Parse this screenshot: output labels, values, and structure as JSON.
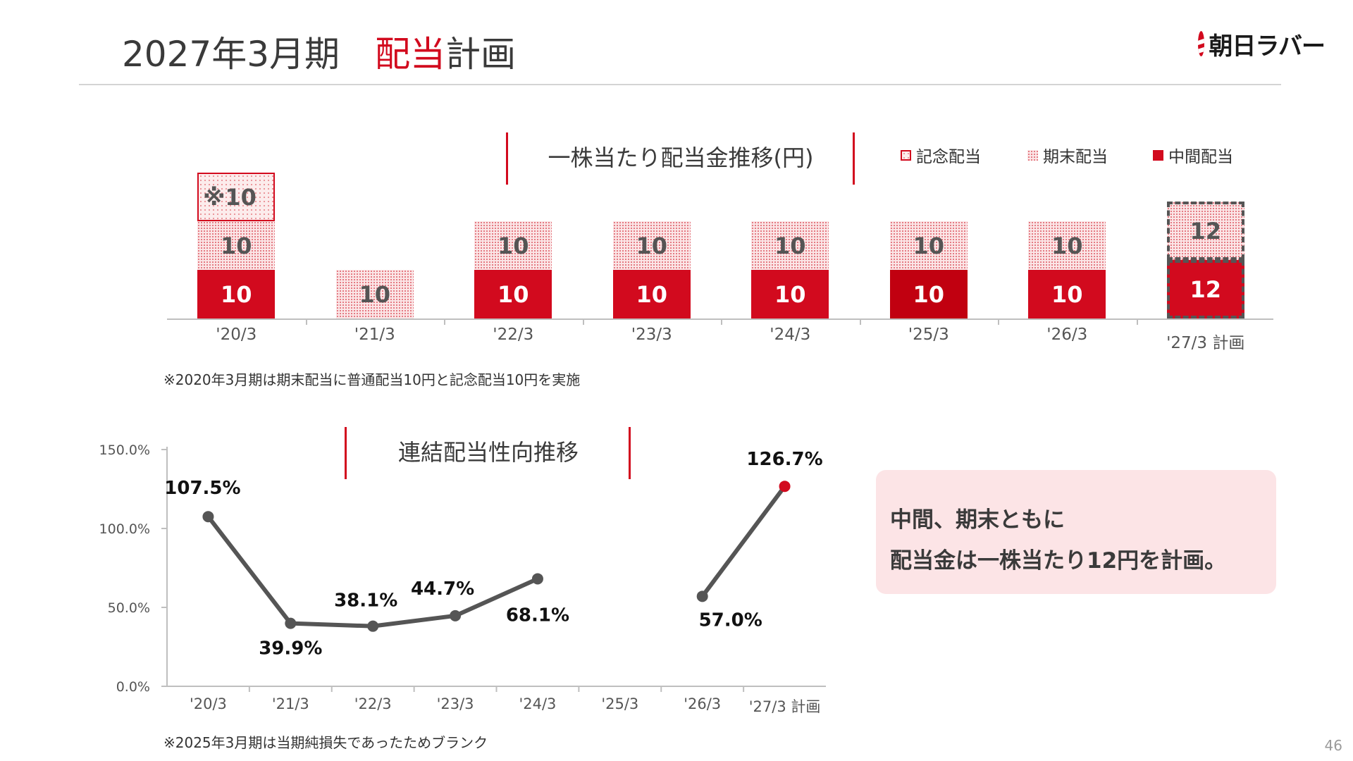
{
  "header": {
    "title_main": "2027年3月期",
    "title_accent": "配当",
    "title_rest": "計画",
    "logo_text": "朝日ラバー"
  },
  "dividend_panel": {
    "title": "一株当たり配当金推移(円)",
    "legend": [
      {
        "label": "記念配当",
        "key": "memorial"
      },
      {
        "label": "期末配当",
        "key": "yearend"
      },
      {
        "label": "中間配当",
        "key": "interim"
      }
    ],
    "note": "※2020年3月期は期末配当に普通配当10円と記念配当10円を実施"
  },
  "payout_panel": {
    "title": "連結配当性向推移",
    "note": "※2025年3月期は当期純損失であったためブランク"
  },
  "callout": {
    "line1": "中間、期末ともに",
    "line2": "配当金は一株当たり12円を計画。"
  },
  "page_number": "46",
  "colors": {
    "accent_red": "#d20a1e",
    "line_gray": "#555555",
    "callout_bg": "#fce4e6"
  },
  "chart_data": [
    {
      "type": "bar",
      "stacked": true,
      "title": "一株当たり配当金推移(円)",
      "categories": [
        "'20/3",
        "'21/3",
        "'22/3",
        "'23/3",
        "'24/3",
        "'25/3",
        "'26/3",
        "'27/3 計画"
      ],
      "series": [
        {
          "name": "中間配当",
          "values": [
            10,
            0,
            10,
            10,
            10,
            10,
            10,
            12
          ],
          "labels": [
            "10",
            "",
            "10",
            "10",
            "10",
            "10",
            "10",
            "12"
          ]
        },
        {
          "name": "期末配当",
          "values": [
            10,
            10,
            10,
            10,
            10,
            10,
            10,
            12
          ],
          "labels": [
            "10",
            "10",
            "10",
            "10",
            "10",
            "10",
            "10",
            "12"
          ]
        },
        {
          "name": "記念配当",
          "values": [
            10,
            0,
            0,
            0,
            0,
            0,
            0,
            0
          ],
          "labels": [
            "※10",
            "",
            "",
            "",
            "",
            "",
            "",
            ""
          ]
        }
      ],
      "plan_index": 7,
      "legend_position": "top-right",
      "grid": false
    },
    {
      "type": "line",
      "title": "連結配当性向推移",
      "categories": [
        "'20/3",
        "'21/3",
        "'22/3",
        "'23/3",
        "'24/3",
        "'25/3",
        "'26/3",
        "'27/3 計画"
      ],
      "series": [
        {
          "values": [
            107.5,
            39.9,
            38.1,
            44.7,
            68.1,
            null,
            57.0,
            126.7
          ],
          "labels": [
            "107.5%",
            "39.9%",
            "38.1%",
            "44.7%",
            "68.1%",
            "",
            "57.0%",
            "126.7%"
          ]
        }
      ],
      "ylim": [
        0,
        150
      ],
      "yticks": [
        "0.0%",
        "50.0%",
        "100.0%",
        "150.0%"
      ],
      "grid": false,
      "highlight_index": 7
    }
  ]
}
